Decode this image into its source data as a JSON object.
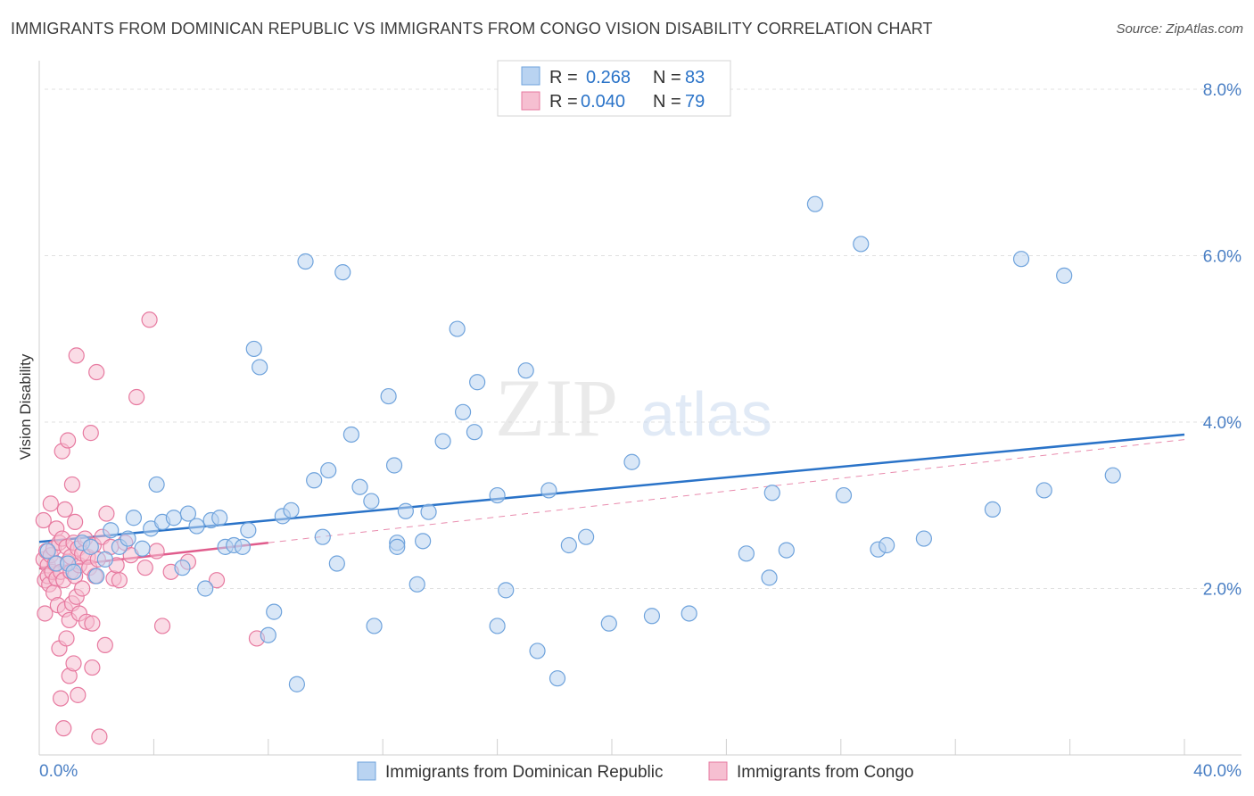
{
  "header": {
    "title": "IMMIGRANTS FROM DOMINICAN REPUBLIC VS IMMIGRANTS FROM CONGO VISION DISABILITY CORRELATION CHART",
    "source": "Source: ZipAtlas.com"
  },
  "watermark": {
    "zip": "ZIP",
    "atlas": "atlas"
  },
  "colors": {
    "blue": "#6fa3dc",
    "blue_fill": "#b9d3f1",
    "blue_line": "#2a73c8",
    "pink": "#e77aa0",
    "pink_fill": "#f6bfd1",
    "pink_line": "#e05c8c",
    "grid": "#e0e0e0",
    "label_blue": "#4a7fc4"
  },
  "legend_top": {
    "rows": [
      {
        "r_label": "R =",
        "r_value": "0.268",
        "n_label": "N =",
        "n_value": "83"
      },
      {
        "r_label": "R =",
        "r_value": "0.040",
        "n_label": "N =",
        "n_value": "79"
      }
    ]
  },
  "chart_data": {
    "type": "scatter",
    "ylabel": "Vision Disability",
    "xlim": [
      0,
      40
    ],
    "ylim": [
      0,
      8.3
    ],
    "x_tick_labels": [
      "0.0%",
      "40.0%"
    ],
    "y_ticks": [
      2,
      4,
      6,
      8
    ],
    "y_tick_labels": [
      "2.0%",
      "4.0%",
      "6.0%",
      "8.0%"
    ],
    "grid": true,
    "legend_placement": "top-center",
    "series": [
      {
        "name": "Immigrants from Dominican Republic",
        "color": "#6fa3dc",
        "trend": {
          "x": [
            0,
            40
          ],
          "y": [
            2.56,
            3.85
          ]
        },
        "points": [
          [
            0.3,
            2.45
          ],
          [
            0.6,
            2.3
          ],
          [
            1.0,
            2.3
          ],
          [
            1.2,
            2.2
          ],
          [
            1.5,
            2.55
          ],
          [
            1.8,
            2.5
          ],
          [
            2.0,
            2.15
          ],
          [
            2.3,
            2.35
          ],
          [
            2.5,
            2.7
          ],
          [
            2.8,
            2.5
          ],
          [
            3.1,
            2.6
          ],
          [
            3.3,
            2.85
          ],
          [
            3.6,
            2.48
          ],
          [
            3.9,
            2.72
          ],
          [
            4.1,
            3.25
          ],
          [
            4.3,
            2.8
          ],
          [
            4.7,
            2.85
          ],
          [
            5.0,
            2.25
          ],
          [
            5.2,
            2.9
          ],
          [
            5.5,
            2.75
          ],
          [
            5.8,
            2.0
          ],
          [
            6.0,
            2.82
          ],
          [
            6.3,
            2.85
          ],
          [
            6.5,
            2.5
          ],
          [
            6.8,
            2.52
          ],
          [
            7.1,
            2.5
          ],
          [
            7.3,
            2.7
          ],
          [
            7.5,
            4.88
          ],
          [
            7.7,
            4.66
          ],
          [
            8.0,
            1.44
          ],
          [
            8.2,
            1.72
          ],
          [
            8.5,
            2.87
          ],
          [
            8.8,
            2.94
          ],
          [
            9.0,
            0.85
          ],
          [
            9.3,
            5.93
          ],
          [
            9.6,
            3.3
          ],
          [
            9.9,
            2.62
          ],
          [
            10.1,
            3.42
          ],
          [
            10.4,
            2.3
          ],
          [
            10.6,
            5.8
          ],
          [
            10.9,
            3.85
          ],
          [
            11.2,
            3.22
          ],
          [
            11.6,
            3.05
          ],
          [
            11.7,
            1.55
          ],
          [
            12.2,
            4.31
          ],
          [
            12.4,
            3.48
          ],
          [
            12.5,
            2.55
          ],
          [
            12.5,
            2.5
          ],
          [
            12.8,
            2.93
          ],
          [
            13.2,
            2.05
          ],
          [
            13.4,
            2.57
          ],
          [
            13.6,
            2.92
          ],
          [
            14.1,
            3.77
          ],
          [
            14.6,
            5.12
          ],
          [
            14.8,
            4.12
          ],
          [
            15.2,
            3.88
          ],
          [
            15.3,
            4.48
          ],
          [
            16.0,
            1.55
          ],
          [
            16.0,
            3.12
          ],
          [
            16.3,
            1.98
          ],
          [
            17.0,
            4.62
          ],
          [
            17.4,
            1.25
          ],
          [
            17.8,
            3.18
          ],
          [
            18.1,
            0.92
          ],
          [
            18.5,
            2.52
          ],
          [
            19.1,
            2.62
          ],
          [
            19.9,
            1.58
          ],
          [
            20.7,
            3.52
          ],
          [
            21.4,
            1.67
          ],
          [
            22.7,
            1.7
          ],
          [
            24.7,
            2.42
          ],
          [
            25.5,
            2.13
          ],
          [
            25.6,
            3.15
          ],
          [
            26.1,
            2.46
          ],
          [
            27.1,
            6.62
          ],
          [
            28.1,
            3.12
          ],
          [
            28.7,
            6.14
          ],
          [
            29.3,
            2.47
          ],
          [
            29.6,
            2.52
          ],
          [
            30.9,
            2.6
          ],
          [
            33.3,
            2.95
          ],
          [
            34.3,
            5.96
          ],
          [
            35.1,
            3.18
          ],
          [
            35.8,
            5.76
          ],
          [
            37.5,
            3.36
          ]
        ]
      },
      {
        "name": "Immigrants from Congo",
        "color": "#e77aa0",
        "trend": {
          "x": [
            0,
            8
          ],
          "y": [
            2.24,
            2.55
          ]
        },
        "points": [
          [
            0.15,
            2.82
          ],
          [
            0.15,
            2.35
          ],
          [
            0.2,
            2.1
          ],
          [
            0.2,
            1.7
          ],
          [
            0.25,
            2.45
          ],
          [
            0.3,
            2.28
          ],
          [
            0.3,
            2.15
          ],
          [
            0.35,
            2.05
          ],
          [
            0.4,
            3.02
          ],
          [
            0.4,
            2.4
          ],
          [
            0.45,
            2.2
          ],
          [
            0.5,
            2.48
          ],
          [
            0.5,
            1.95
          ],
          [
            0.55,
            2.3
          ],
          [
            0.6,
            2.72
          ],
          [
            0.6,
            2.12
          ],
          [
            0.65,
            1.8
          ],
          [
            0.7,
            2.55
          ],
          [
            0.7,
            1.28
          ],
          [
            0.75,
            2.2
          ],
          [
            0.75,
            0.68
          ],
          [
            0.8,
            3.65
          ],
          [
            0.8,
            2.6
          ],
          [
            0.85,
            2.1
          ],
          [
            0.85,
            0.32
          ],
          [
            0.9,
            2.95
          ],
          [
            0.9,
            1.75
          ],
          [
            0.95,
            2.5
          ],
          [
            0.95,
            1.4
          ],
          [
            1.0,
            3.78
          ],
          [
            1.0,
            2.32
          ],
          [
            1.05,
            1.62
          ],
          [
            1.05,
            0.95
          ],
          [
            1.1,
            2.38
          ],
          [
            1.1,
            2.2
          ],
          [
            1.15,
            3.25
          ],
          [
            1.15,
            1.82
          ],
          [
            1.2,
            2.55
          ],
          [
            1.2,
            1.1
          ],
          [
            1.25,
            2.8
          ],
          [
            1.25,
            2.15
          ],
          [
            1.3,
            4.8
          ],
          [
            1.3,
            1.9
          ],
          [
            1.35,
            2.48
          ],
          [
            1.35,
            0.72
          ],
          [
            1.4,
            2.28
          ],
          [
            1.4,
            1.7
          ],
          [
            1.5,
            2.42
          ],
          [
            1.5,
            2.0
          ],
          [
            1.6,
            2.6
          ],
          [
            1.65,
            1.6
          ],
          [
            1.7,
            2.38
          ],
          [
            1.75,
            2.25
          ],
          [
            1.8,
            3.87
          ],
          [
            1.85,
            1.58
          ],
          [
            1.85,
            1.05
          ],
          [
            1.9,
            2.52
          ],
          [
            1.95,
            2.15
          ],
          [
            2.0,
            4.6
          ],
          [
            2.05,
            2.35
          ],
          [
            2.1,
            0.22
          ],
          [
            2.2,
            2.62
          ],
          [
            2.3,
            1.32
          ],
          [
            2.35,
            2.9
          ],
          [
            2.5,
            2.5
          ],
          [
            2.6,
            2.12
          ],
          [
            2.7,
            2.28
          ],
          [
            2.8,
            2.1
          ],
          [
            3.0,
            2.55
          ],
          [
            3.2,
            2.4
          ],
          [
            3.4,
            4.3
          ],
          [
            3.7,
            2.25
          ],
          [
            3.85,
            5.23
          ],
          [
            4.1,
            2.45
          ],
          [
            4.3,
            1.55
          ],
          [
            4.6,
            2.2
          ],
          [
            5.2,
            2.32
          ],
          [
            6.2,
            2.1
          ],
          [
            7.6,
            1.4
          ]
        ]
      }
    ]
  }
}
